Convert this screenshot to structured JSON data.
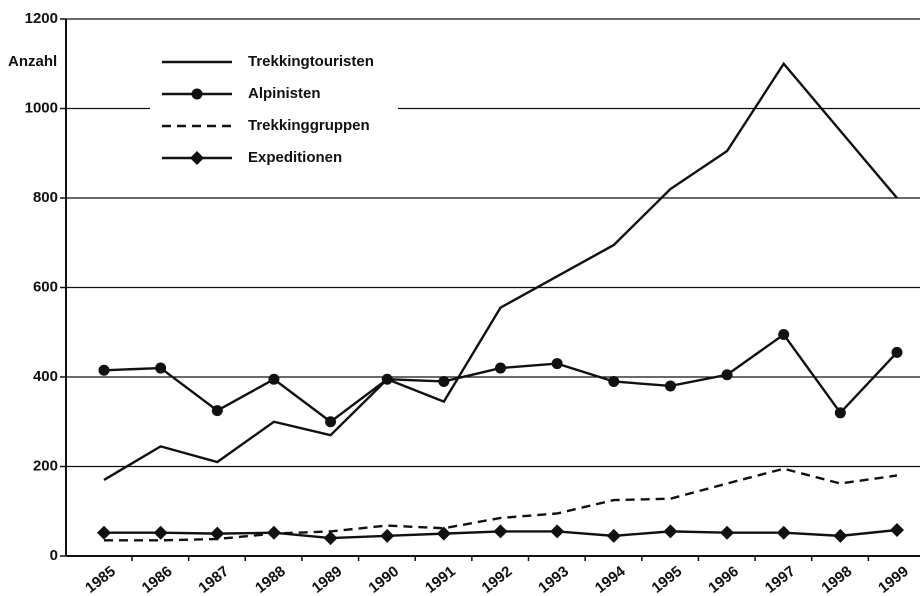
{
  "chart_data": {
    "type": "line",
    "y_label": "Anzahl",
    "categories": [
      "1985",
      "1986",
      "1987",
      "1988",
      "1989",
      "1990",
      "1991",
      "1992",
      "1993",
      "1994",
      "1995",
      "1996",
      "1997",
      "1998",
      "1999"
    ],
    "series": [
      {
        "name": "Trekkingtouristen",
        "color": "#111111",
        "dash": false,
        "marker": "none",
        "values": [
          170,
          245,
          210,
          300,
          270,
          395,
          345,
          555,
          625,
          695,
          820,
          905,
          1100,
          950,
          800
        ]
      },
      {
        "name": "Alpinisten",
        "color": "#111111",
        "dash": false,
        "marker": "circle",
        "values": [
          415,
          420,
          325,
          395,
          300,
          395,
          390,
          420,
          430,
          390,
          380,
          405,
          495,
          320,
          455
        ]
      },
      {
        "name": "Trekkinggruppen",
        "color": "#111111",
        "dash": true,
        "marker": "none",
        "values": [
          35,
          35,
          38,
          50,
          55,
          68,
          62,
          85,
          95,
          125,
          128,
          162,
          195,
          162,
          180
        ]
      },
      {
        "name": "Expeditionen",
        "color": "#111111",
        "dash": false,
        "marker": "diamond",
        "values": [
          52,
          52,
          50,
          52,
          40,
          45,
          50,
          55,
          55,
          45,
          55,
          52,
          52,
          45,
          58
        ]
      }
    ],
    "ylim": [
      0,
      1200
    ],
    "yticks": [
      0,
      200,
      400,
      600,
      800,
      1000,
      1200
    ],
    "grid": true,
    "legend": "upper left"
  }
}
